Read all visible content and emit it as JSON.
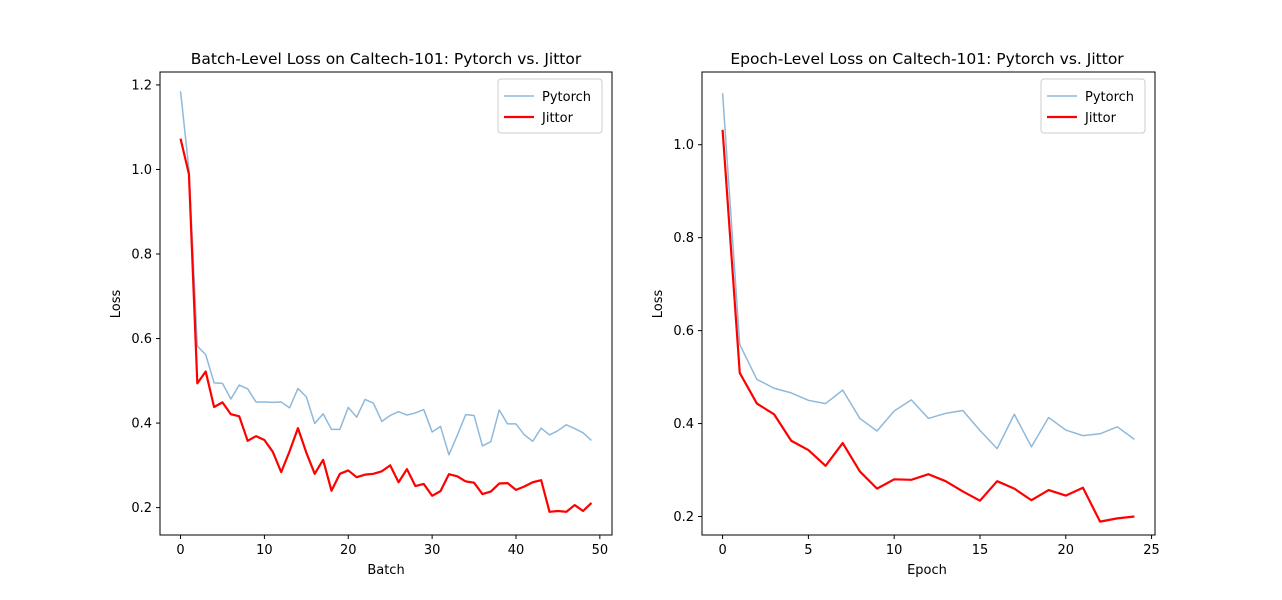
{
  "chart_data": [
    {
      "type": "line",
      "title": "Batch-Level Loss on Caltech-101: Pytorch vs. Jittor",
      "xlabel": "Batch",
      "ylabel": "Loss",
      "xlim": [
        -2.45,
        51.45
      ],
      "ylim": [
        0.1352,
        1.2306
      ],
      "xticks": [
        0,
        10,
        20,
        30,
        40,
        50
      ],
      "yticks": [
        0.2,
        0.4,
        0.6,
        0.8,
        1.0,
        1.2
      ],
      "legend": "top-right",
      "series": [
        {
          "name": "Pytorch",
          "color": "#8fb9db",
          "values": [
            1.185,
            1.0,
            0.582,
            0.562,
            0.495,
            0.494,
            0.457,
            0.49,
            0.481,
            0.45,
            0.45,
            0.449,
            0.45,
            0.436,
            0.482,
            0.462,
            0.399,
            0.422,
            0.385,
            0.385,
            0.437,
            0.414,
            0.456,
            0.447,
            0.404,
            0.418,
            0.427,
            0.419,
            0.424,
            0.432,
            0.379,
            0.392,
            0.325,
            0.371,
            0.42,
            0.418,
            0.346,
            0.356,
            0.431,
            0.398,
            0.398,
            0.372,
            0.357,
            0.388,
            0.372,
            0.382,
            0.396,
            0.387,
            0.377,
            0.359
          ]
        },
        {
          "name": "Jittor",
          "color": "#ff0000",
          "values": [
            1.073,
            0.989,
            0.494,
            0.522,
            0.438,
            0.449,
            0.421,
            0.416,
            0.358,
            0.369,
            0.36,
            0.332,
            0.284,
            0.333,
            0.388,
            0.33,
            0.28,
            0.313,
            0.24,
            0.28,
            0.288,
            0.272,
            0.278,
            0.28,
            0.286,
            0.3,
            0.26,
            0.291,
            0.251,
            0.256,
            0.228,
            0.239,
            0.279,
            0.274,
            0.262,
            0.259,
            0.232,
            0.238,
            0.257,
            0.258,
            0.242,
            0.25,
            0.26,
            0.265,
            0.19,
            0.192,
            0.19,
            0.206,
            0.192,
            0.211
          ]
        }
      ]
    },
    {
      "type": "line",
      "title": "Epoch-Level Loss on Caltech-101: Pytorch vs. Jittor",
      "xlabel": "Epoch",
      "ylabel": "Loss",
      "xlim": [
        -1.2,
        25.2
      ],
      "ylim": [
        0.1602,
        1.1565
      ],
      "xticks": [
        0,
        5,
        10,
        15,
        20,
        25
      ],
      "yticks": [
        0.2,
        0.4,
        0.6,
        0.8,
        1.0
      ],
      "legend": "top-right",
      "series": [
        {
          "name": "Pytorch",
          "color": "#8fb9db",
          "values": [
            1.111,
            0.57,
            0.495,
            0.476,
            0.466,
            0.45,
            0.443,
            0.472,
            0.411,
            0.384,
            0.427,
            0.451,
            0.411,
            0.422,
            0.428,
            0.385,
            0.346,
            0.42,
            0.35,
            0.413,
            0.386,
            0.374,
            0.378,
            0.393,
            0.366
          ]
        },
        {
          "name": "Jittor",
          "color": "#ff0000",
          "values": [
            1.032,
            0.509,
            0.443,
            0.42,
            0.363,
            0.343,
            0.309,
            0.358,
            0.297,
            0.26,
            0.28,
            0.279,
            0.291,
            0.276,
            0.254,
            0.234,
            0.276,
            0.26,
            0.235,
            0.257,
            0.245,
            0.262,
            0.189,
            0.196,
            0.2
          ]
        }
      ]
    }
  ]
}
